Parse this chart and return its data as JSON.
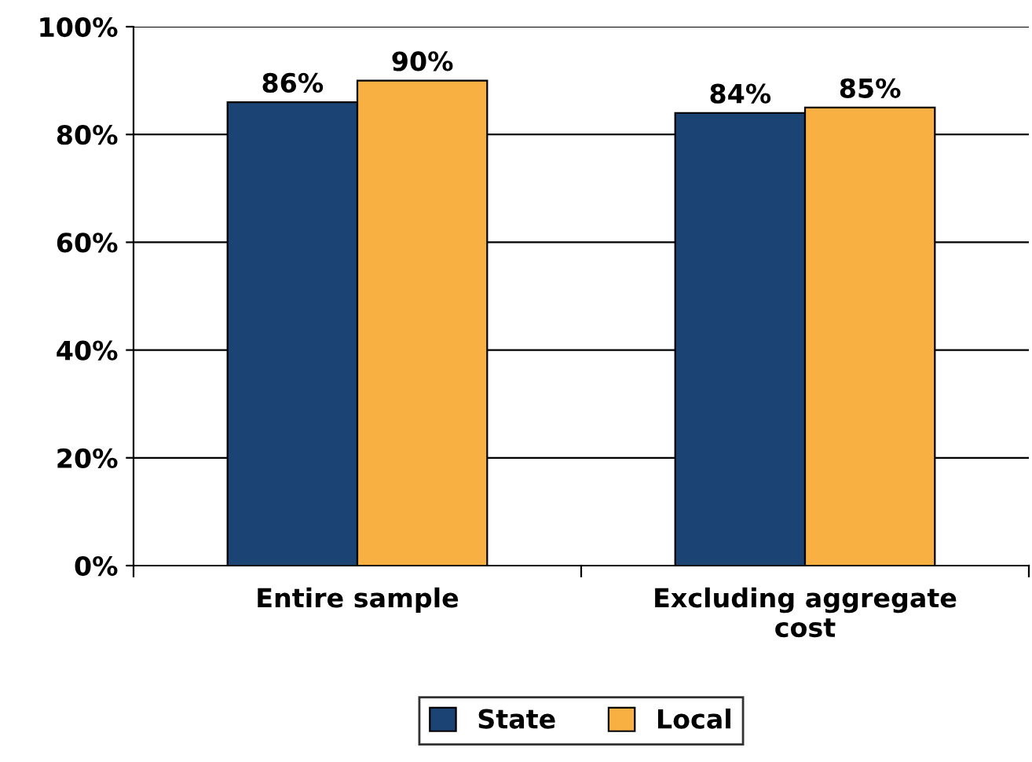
{
  "chart_data": {
    "type": "bar",
    "categories": [
      "Entire sample",
      "Excluding aggregate cost"
    ],
    "series": [
      {
        "name": "State",
        "color": "#1b4374",
        "values": [
          86,
          84
        ],
        "value_labels": [
          "86%",
          "84%"
        ]
      },
      {
        "name": "Local",
        "color": "#f9b043",
        "values": [
          90,
          85
        ],
        "value_labels": [
          "90%",
          "85%"
        ]
      }
    ],
    "ylim": [
      0,
      100
    ],
    "yticks": [
      {
        "value": 0,
        "label": "0%"
      },
      {
        "value": 20,
        "label": "20%"
      },
      {
        "value": 40,
        "label": "40%"
      },
      {
        "value": 60,
        "label": "60%"
      },
      {
        "value": 80,
        "label": "80%"
      },
      {
        "value": 100,
        "label": "100%"
      }
    ],
    "grid": "y",
    "legend": "bottom"
  }
}
